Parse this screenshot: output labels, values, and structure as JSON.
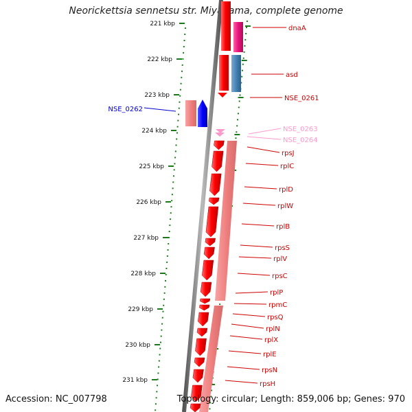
{
  "header": {
    "title": "Neorickettsia sennetsu str. Miyayama, complete genome"
  },
  "footer": {
    "accession": "Accession: NC_007798",
    "info": "Topology: circular; Length: 859,006 bp; Genes: 970"
  },
  "colors": {
    "cds": "#ff0000",
    "cds_pale": "#f08080",
    "gene_magenta": "#e8127a",
    "gene_blue": "#0000ff",
    "gene_steelblue": "#4682b4",
    "pseudo_pink": "#ff99cc",
    "ruler_green": "#1a7a1a",
    "label_red": "#cc0000",
    "label_blue": "#0000cc"
  },
  "ruler": {
    "ticks": [
      "221 kbp",
      "222 kbp",
      "223 kbp",
      "224 kbp",
      "225 kbp",
      "226 kbp",
      "227 kbp",
      "228 kbp",
      "229 kbp",
      "230 kbp",
      "231 kbp"
    ]
  },
  "genes": [
    {
      "name": "dnaA",
      "color": "label_red"
    },
    {
      "name": "asd",
      "color": "label_red"
    },
    {
      "name": "NSE_0261",
      "color": "label_red"
    },
    {
      "name": "NSE_0262",
      "color": "label_blue"
    },
    {
      "name": "NSE_0263",
      "color": "pseudo_pink"
    },
    {
      "name": "NSE_0264",
      "color": "pseudo_pink"
    },
    {
      "name": "rpsJ",
      "color": "label_red"
    },
    {
      "name": "rplC",
      "color": "label_red"
    },
    {
      "name": "rplD",
      "color": "label_red"
    },
    {
      "name": "rplW",
      "color": "label_red"
    },
    {
      "name": "rplB",
      "color": "label_red"
    },
    {
      "name": "rpsS",
      "color": "label_red"
    },
    {
      "name": "rplV",
      "color": "label_red"
    },
    {
      "name": "rpsC",
      "color": "label_red"
    },
    {
      "name": "rplP",
      "color": "label_red"
    },
    {
      "name": "rpmC",
      "color": "label_red"
    },
    {
      "name": "rpsQ",
      "color": "label_red"
    },
    {
      "name": "rplN",
      "color": "label_red"
    },
    {
      "name": "rplX",
      "color": "label_red"
    },
    {
      "name": "rplE",
      "color": "label_red"
    },
    {
      "name": "rpsN",
      "color": "label_red"
    },
    {
      "name": "rpsH",
      "color": "label_red"
    }
  ]
}
